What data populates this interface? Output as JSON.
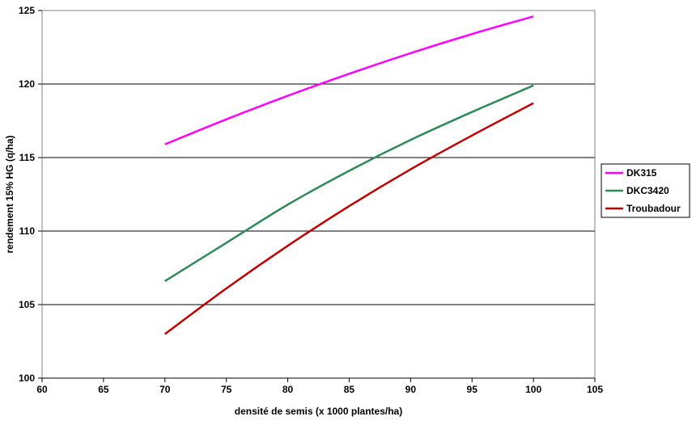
{
  "chart_data": {
    "type": "line",
    "title": "",
    "xlabel": "densité de semis (x 1000 plantes/ha)",
    "ylabel": "rendement 15% HG (q/ha)",
    "xlim": [
      60,
      105
    ],
    "ylim": [
      100,
      125
    ],
    "xticks": [
      60,
      65,
      70,
      75,
      80,
      85,
      90,
      95,
      100,
      105
    ],
    "yticks": [
      100,
      105,
      110,
      115,
      120,
      125
    ],
    "grid": "horizontal",
    "legend_position": "right",
    "series": [
      {
        "name": "DK315",
        "color": "#ff00ff",
        "x": [
          70,
          75,
          80,
          85,
          90,
          95,
          100
        ],
        "y": [
          115.9,
          117.6,
          119.2,
          120.7,
          122.1,
          123.4,
          124.6
        ]
      },
      {
        "name": "DKC3420",
        "color": "#2e8b57",
        "x": [
          70,
          75,
          80,
          85,
          90,
          95,
          100
        ],
        "y": [
          106.6,
          109.2,
          111.8,
          114.1,
          116.2,
          118.1,
          119.9
        ]
      },
      {
        "name": "Troubadour",
        "color": "#c00000",
        "x": [
          70,
          75,
          80,
          85,
          90,
          95,
          100
        ],
        "y": [
          103.0,
          106.1,
          109.0,
          111.7,
          114.2,
          116.5,
          118.7
        ]
      }
    ]
  }
}
